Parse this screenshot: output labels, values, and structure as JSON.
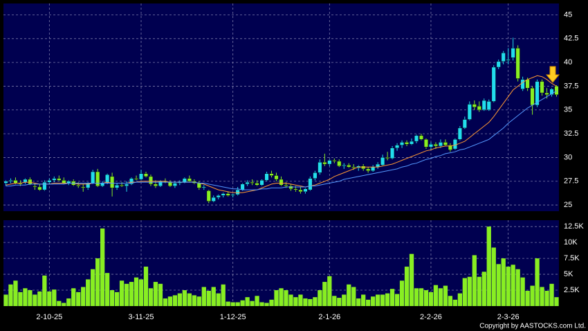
{
  "chart_data": {
    "type": "candlestick",
    "categories": [
      null,
      null,
      null,
      null,
      null,
      null,
      null,
      null,
      null,
      "2-10-25",
      null,
      null,
      null,
      null,
      null,
      null,
      null,
      null,
      null,
      null,
      null,
      null,
      null,
      null,
      null,
      null,
      null,
      null,
      "3-11-25",
      null,
      null,
      null,
      null,
      null,
      null,
      null,
      null,
      null,
      null,
      null,
      null,
      null,
      null,
      null,
      null,
      null,
      null,
      "1-12-25",
      null,
      null,
      null,
      null,
      null,
      null,
      null,
      null,
      null,
      null,
      null,
      null,
      null,
      null,
      null,
      null,
      null,
      null,
      null,
      "2-1-26",
      null,
      null,
      null,
      null,
      null,
      null,
      null,
      null,
      null,
      null,
      null,
      null,
      null,
      null,
      null,
      null,
      null,
      null,
      null,
      null,
      "2-2-26",
      null,
      null,
      null,
      null,
      null,
      null,
      null,
      null,
      null,
      null,
      null,
      null,
      null,
      null,
      null,
      "2-3-26",
      null,
      null,
      null,
      null,
      null,
      null,
      null,
      null,
      null,
      null
    ],
    "candles": [
      [
        27.3,
        27.6,
        27.0,
        27.5
      ],
      [
        27.5,
        27.8,
        27.3,
        27.6
      ],
      [
        27.6,
        27.9,
        27.2,
        27.3
      ],
      [
        27.3,
        27.6,
        27.0,
        27.2
      ],
      [
        27.4,
        27.8,
        27.2,
        27.7
      ],
      [
        27.7,
        27.9,
        27.1,
        27.2
      ],
      [
        27.0,
        27.3,
        26.6,
        26.9
      ],
      [
        26.9,
        27.2,
        26.5,
        26.6
      ],
      [
        26.6,
        27.6,
        26.5,
        27.4
      ],
      [
        27.4,
        27.8,
        27.2,
        27.6
      ],
      [
        27.6,
        28.0,
        27.4,
        27.8
      ],
      [
        27.8,
        28.1,
        27.5,
        27.6
      ],
      [
        27.6,
        27.9,
        27.2,
        27.3
      ],
      [
        27.3,
        27.6,
        27.1,
        27.5
      ],
      [
        27.5,
        27.7,
        27.0,
        27.1
      ],
      [
        27.1,
        27.4,
        26.8,
        27.0
      ],
      [
        26.9,
        27.2,
        26.4,
        26.8
      ],
      [
        26.8,
        27.4,
        26.6,
        27.3
      ],
      [
        27.3,
        28.7,
        27.2,
        28.5
      ],
      [
        28.5,
        28.8,
        26.9,
        27.0
      ],
      [
        27.0,
        27.5,
        26.9,
        27.3
      ],
      [
        27.3,
        28.3,
        27.2,
        28.2
      ],
      [
        28.0,
        28.4,
        25.9,
        26.8
      ],
      [
        26.8,
        27.3,
        26.6,
        27.1
      ],
      [
        27.1,
        27.4,
        26.9,
        27.0
      ],
      [
        27.0,
        27.5,
        26.4,
        27.2
      ],
      [
        27.2,
        27.9,
        27.1,
        27.8
      ],
      [
        27.8,
        28.1,
        27.6,
        27.7
      ],
      [
        27.7,
        28.7,
        27.6,
        28.3
      ],
      [
        28.3,
        28.5,
        27.9,
        28.0
      ],
      [
        28.0,
        28.2,
        27.0,
        27.2
      ],
      [
        27.2,
        27.6,
        26.8,
        27.0
      ],
      [
        27.0,
        27.6,
        26.9,
        27.5
      ],
      [
        27.5,
        27.8,
        27.3,
        27.4
      ],
      [
        27.4,
        27.6,
        26.9,
        27.0
      ],
      [
        27.0,
        27.5,
        26.8,
        27.3
      ],
      [
        27.3,
        27.6,
        27.1,
        27.4
      ],
      [
        27.4,
        27.9,
        27.3,
        27.8
      ],
      [
        27.8,
        28.1,
        27.4,
        27.5
      ],
      [
        27.5,
        27.7,
        27.2,
        27.3
      ],
      [
        27.3,
        27.5,
        26.6,
        26.8
      ],
      [
        26.8,
        27.1,
        26.6,
        26.9
      ],
      [
        26.5,
        26.6,
        25.2,
        25.4
      ],
      [
        25.4,
        26.0,
        25.3,
        25.8
      ],
      [
        25.8,
        26.1,
        25.6,
        26.0
      ],
      [
        26.0,
        26.3,
        25.8,
        26.2
      ],
      [
        26.2,
        26.4,
        25.9,
        26.0
      ],
      [
        26.0,
        26.2,
        25.8,
        26.1
      ],
      [
        26.1,
        26.9,
        26.0,
        26.6
      ],
      [
        26.6,
        27.3,
        26.5,
        27.2
      ],
      [
        27.2,
        27.6,
        27.0,
        27.4
      ],
      [
        27.4,
        27.7,
        27.1,
        27.3
      ],
      [
        27.3,
        27.6,
        27.0,
        27.1
      ],
      [
        27.1,
        27.7,
        27.0,
        27.6
      ],
      [
        27.6,
        28.5,
        27.5,
        28.3
      ],
      [
        28.3,
        28.6,
        27.9,
        28.1
      ],
      [
        28.1,
        28.4,
        27.5,
        27.7
      ],
      [
        27.7,
        28.0,
        27.0,
        27.1
      ],
      [
        27.1,
        27.4,
        26.8,
        27.0
      ],
      [
        27.0,
        27.2,
        26.5,
        26.7
      ],
      [
        26.7,
        27.0,
        26.4,
        26.6
      ],
      [
        26.6,
        26.9,
        26.2,
        26.4
      ],
      [
        26.4,
        26.8,
        26.2,
        26.7
      ],
      [
        26.6,
        28.0,
        26.5,
        27.8
      ],
      [
        27.8,
        28.6,
        27.6,
        28.4
      ],
      [
        28.4,
        29.8,
        28.2,
        29.5
      ],
      [
        29.5,
        30.4,
        29.1,
        29.3
      ],
      [
        29.3,
        29.8,
        29.1,
        29.7
      ],
      [
        29.7,
        29.9,
        29.4,
        29.6
      ],
      [
        29.6,
        29.8,
        29.0,
        29.1
      ],
      [
        29.1,
        29.4,
        28.8,
        29.2
      ],
      [
        29.2,
        29.4,
        28.9,
        29.0
      ],
      [
        29.0,
        29.3,
        28.7,
        28.9
      ],
      [
        28.9,
        29.2,
        28.6,
        29.1
      ],
      [
        29.1,
        29.3,
        28.6,
        28.8
      ],
      [
        28.8,
        29.0,
        28.4,
        28.6
      ],
      [
        28.6,
        29.2,
        28.5,
        29.0
      ],
      [
        29.0,
        29.5,
        28.8,
        29.3
      ],
      [
        29.2,
        30.3,
        29.1,
        30.0
      ],
      [
        30.0,
        30.6,
        29.7,
        29.9
      ],
      [
        29.9,
        31.2,
        29.8,
        31.0
      ],
      [
        31.0,
        31.5,
        30.7,
        31.3
      ],
      [
        31.3,
        31.8,
        31.0,
        31.6
      ],
      [
        31.6,
        31.8,
        31.2,
        31.4
      ],
      [
        31.4,
        32.0,
        31.3,
        31.7
      ],
      [
        31.7,
        32.4,
        31.5,
        32.3
      ],
      [
        32.3,
        32.5,
        31.8,
        31.9
      ],
      [
        31.9,
        32.0,
        30.9,
        31.1
      ],
      [
        31.1,
        31.6,
        30.8,
        31.4
      ],
      [
        31.4,
        31.6,
        30.9,
        31.2
      ],
      [
        31.2,
        31.9,
        31.0,
        31.6
      ],
      [
        31.6,
        31.9,
        31.2,
        31.3
      ],
      [
        31.3,
        31.5,
        30.6,
        30.8
      ],
      [
        30.9,
        32.0,
        30.8,
        31.9
      ],
      [
        31.9,
        33.3,
        31.8,
        33.1
      ],
      [
        33.1,
        34.3,
        33.0,
        34.0
      ],
      [
        34.0,
        35.9,
        33.9,
        35.6
      ],
      [
        35.6,
        36.0,
        35.0,
        35.3
      ],
      [
        35.4,
        35.9,
        34.8,
        35.0
      ],
      [
        35.0,
        36.2,
        34.9,
        36.0
      ],
      [
        35.0,
        36.1,
        34.9,
        35.9
      ],
      [
        35.9,
        39.7,
        35.8,
        39.5
      ],
      [
        39.5,
        40.3,
        39.3,
        40.1
      ],
      [
        40.1,
        41.2,
        39.8,
        41.0
      ],
      [
        40.2,
        41.5,
        39.8,
        40.3
      ],
      [
        40.5,
        42.6,
        40.2,
        41.5
      ],
      [
        41.5,
        41.8,
        38.0,
        38.3
      ],
      [
        37.2,
        38.5,
        37.0,
        38.2
      ],
      [
        38.2,
        38.4,
        37.0,
        37.3
      ],
      [
        37.3,
        37.5,
        34.5,
        35.5
      ],
      [
        35.5,
        38.2,
        35.3,
        38.0
      ],
      [
        38.0,
        38.2,
        36.5,
        36.8
      ],
      [
        36.8,
        37.3,
        36.2,
        36.6
      ],
      [
        36.6,
        37.3,
        36.4,
        37.2
      ],
      [
        37.5,
        37.6,
        36.4,
        36.6
      ]
    ],
    "up_color": "#22ddee",
    "down_color": "#88ee22",
    "overlays": [
      {
        "color": "#ff9933",
        "values": [
          27.1,
          27.2,
          27.3,
          27.3,
          27.4,
          27.4,
          27.3,
          27.2,
          27.2,
          27.2,
          27.3,
          27.3,
          27.3,
          27.3,
          27.3,
          27.2,
          27.2,
          27.2,
          27.3,
          27.3,
          27.3,
          27.4,
          27.3,
          27.3,
          27.3,
          27.3,
          27.4,
          27.4,
          27.5,
          27.5,
          27.5,
          27.5,
          27.5,
          27.5,
          27.4,
          27.4,
          27.4,
          27.4,
          27.4,
          27.4,
          27.3,
          27.2,
          27.0,
          26.8,
          26.6,
          26.5,
          26.4,
          26.3,
          26.3,
          26.3,
          26.4,
          26.5,
          26.6,
          26.8,
          27.0,
          27.2,
          27.3,
          27.3,
          27.3,
          27.2,
          27.1,
          27.0,
          26.9,
          27.0,
          27.1,
          27.3,
          27.5,
          27.7,
          28.0,
          28.2,
          28.4,
          28.6,
          28.8,
          29.0,
          29.0,
          29.0,
          29.0,
          29.0,
          29.1,
          29.2,
          29.3,
          29.5,
          29.7,
          29.9,
          30.1,
          30.3,
          30.5,
          30.7,
          30.8,
          31.0,
          31.1,
          31.2,
          31.2,
          31.3,
          31.5,
          31.7,
          32.1,
          32.5,
          32.9,
          33.3,
          33.7,
          34.3,
          35.0,
          35.7,
          36.4,
          37.1,
          37.5,
          37.9,
          38.2,
          38.4,
          38.6,
          38.5,
          38.2,
          37.8,
          37.5
        ]
      },
      {
        "color": "#5599ff",
        "values": [
          27.0,
          27.0,
          27.1,
          27.1,
          27.1,
          27.2,
          27.2,
          27.2,
          27.2,
          27.2,
          27.2,
          27.2,
          27.2,
          27.3,
          27.3,
          27.3,
          27.3,
          27.3,
          27.3,
          27.3,
          27.3,
          27.3,
          27.3,
          27.3,
          27.3,
          27.3,
          27.3,
          27.4,
          27.4,
          27.4,
          27.4,
          27.4,
          27.4,
          27.4,
          27.4,
          27.4,
          27.4,
          27.4,
          27.4,
          27.4,
          27.3,
          27.3,
          27.2,
          27.1,
          27.0,
          26.9,
          26.8,
          26.7,
          26.7,
          26.6,
          26.6,
          26.6,
          26.6,
          26.7,
          26.7,
          26.8,
          26.8,
          26.8,
          26.9,
          26.9,
          26.9,
          26.9,
          26.9,
          27.0,
          27.0,
          27.1,
          27.2,
          27.3,
          27.4,
          27.5,
          27.7,
          27.8,
          27.9,
          28.0,
          28.1,
          28.2,
          28.3,
          28.4,
          28.5,
          28.6,
          28.7,
          28.8,
          29.0,
          29.1,
          29.3,
          29.4,
          29.6,
          29.8,
          29.9,
          30.1,
          30.2,
          30.4,
          30.5,
          30.6,
          30.8,
          30.9,
          31.1,
          31.3,
          31.5,
          31.7,
          31.9,
          32.3,
          32.7,
          33.1,
          33.6,
          34.0,
          34.4,
          34.8,
          35.2,
          35.5,
          35.8,
          36.1,
          36.4,
          36.7,
          37.0
        ]
      }
    ],
    "ylim": [
      24.35,
      46.2
    ],
    "yticks": [
      25,
      27.5,
      30,
      32.5,
      35,
      37.5,
      40,
      42.5,
      45
    ],
    "grid": true,
    "volume": {
      "color": "#88ee22",
      "ylim": [
        0,
        13500
      ],
      "yticks": [
        {
          "value": 2500,
          "label": "2.5K"
        },
        {
          "value": 5000,
          "label": "5K"
        },
        {
          "value": 7500,
          "label": "7.5K"
        },
        {
          "value": 10000,
          "label": "10K"
        },
        {
          "value": 12500,
          "label": "12.5K"
        }
      ],
      "values": [
        1800,
        3400,
        4000,
        2200,
        2800,
        2500,
        1800,
        2300,
        4800,
        2300,
        2600,
        800,
        500,
        1200,
        2800,
        2200,
        3000,
        4200,
        5800,
        7500,
        12200,
        5200,
        2500,
        2200,
        4000,
        3500,
        3800,
        4500,
        4200,
        6200,
        2800,
        3800,
        3500,
        1200,
        1500,
        1700,
        2000,
        2500,
        2000,
        1700,
        1500,
        3000,
        2400,
        3000,
        2000,
        3400,
        700,
        600,
        600,
        900,
        1400,
        800,
        1600,
        600,
        500,
        1000,
        2500,
        2800,
        2500,
        1800,
        1400,
        1800,
        1200,
        1100,
        1400,
        2500,
        3800,
        4700,
        1600,
        1300,
        1800,
        3400,
        3000,
        1200,
        1800,
        1000,
        1500,
        1800,
        1800,
        2000,
        2700,
        1900,
        4000,
        6200,
        8200,
        2800,
        2800,
        2500,
        2200,
        3300,
        2800,
        3200,
        1600,
        1000,
        2000,
        4400,
        4600,
        8000,
        4600,
        5400,
        12500,
        9200,
        6600,
        7500,
        6200,
        6500,
        5800,
        4500,
        2400,
        3200,
        7500,
        3000,
        2400,
        3500,
        1400
      ]
    },
    "copyright": "Copyright by AASTOCKS.com Ltd."
  }
}
